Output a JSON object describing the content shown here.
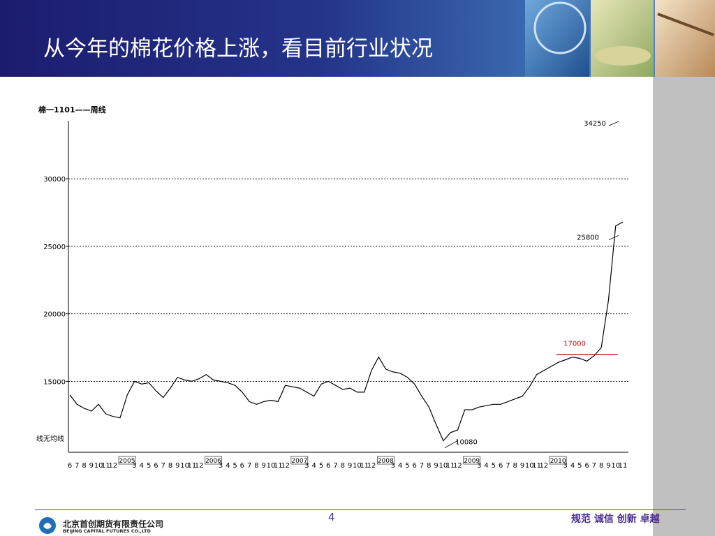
{
  "header": {
    "title": "从今年的棉花价格上涨，看目前行业状况"
  },
  "chart_data": {
    "type": "line",
    "title": "棉一1101——周线",
    "ma_note": "线无均线",
    "categories": [
      "6",
      "7",
      "8",
      "9",
      "10",
      "11",
      "12",
      "2005",
      null,
      "3",
      "4",
      "5",
      "6",
      "7",
      "8",
      "9",
      "10",
      "11",
      "12",
      "2006",
      null,
      "3",
      "4",
      "5",
      "6",
      "7",
      "8",
      "9",
      "10",
      "11",
      "12",
      "2007",
      null,
      "3",
      "4",
      "5",
      "6",
      "7",
      "8",
      "9",
      "10",
      "11",
      "12",
      "2008",
      null,
      "3",
      "4",
      "5",
      "6",
      "7",
      "8",
      "9",
      "10",
      "11",
      "12",
      "2009",
      null,
      "3",
      "4",
      "5",
      "6",
      "7",
      "8",
      "9",
      "10",
      "11",
      "12",
      "2010",
      null,
      "3",
      "4",
      "5",
      "6",
      "7",
      "8",
      "9",
      "10",
      "11"
    ],
    "series": [
      {
        "name": "棉一1101",
        "color": "#000000",
        "values": [
          14000,
          13300,
          13000,
          12800,
          13300,
          12600,
          12400,
          12300,
          14000,
          15000,
          14800,
          14900,
          14300,
          13800,
          14500,
          15300,
          15100,
          15000,
          15200,
          15500,
          15100,
          15000,
          14900,
          14700,
          14200,
          13500,
          13300,
          13500,
          13600,
          13500,
          14700,
          14600,
          14500,
          14200,
          13900,
          14800,
          15000,
          14700,
          14400,
          14500,
          14200,
          14200,
          15800,
          16800,
          15900,
          15700,
          15600,
          15300,
          14800,
          13900,
          13100,
          11800,
          10600,
          11200,
          11400,
          12900,
          12900,
          13100,
          13200,
          13300,
          13300,
          13500,
          13700,
          13900,
          14600,
          15500,
          15800,
          16100,
          16400,
          16600,
          16800,
          16700,
          16500,
          16900,
          17500,
          21000,
          26500,
          26800
        ]
      }
    ],
    "annotations": [
      34250,
      25800,
      17000,
      10080
    ],
    "ylim": [
      9750,
      34300
    ],
    "yticks": [
      15000,
      20000,
      25000,
      30000
    ],
    "grid": true
  },
  "footer": {
    "page": 4,
    "slogan": "规范 诚信 创新 卓越",
    "company_cn": "北京首创期货有限责任公司",
    "company_en": "BEIJING CAPITAL FUTURES CO.,LTD"
  }
}
